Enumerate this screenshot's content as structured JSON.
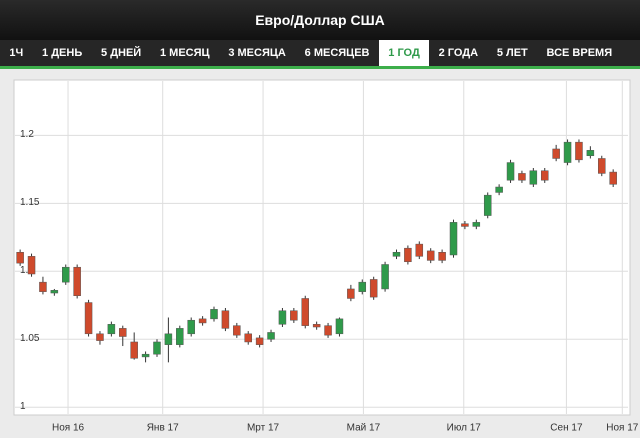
{
  "header": {
    "title": "Евро/Доллар США"
  },
  "tabs": [
    {
      "label": "1Ч"
    },
    {
      "label": "1 ДЕНЬ"
    },
    {
      "label": "5 ДНЕЙ"
    },
    {
      "label": "1 МЕСЯЦ"
    },
    {
      "label": "3 МЕСЯЦА"
    },
    {
      "label": "6 МЕСЯЦЕВ"
    },
    {
      "label": "1 ГОД",
      "active": true
    },
    {
      "label": "2 ГОДА"
    },
    {
      "label": "5 ЛЕТ"
    },
    {
      "label": "ВСЕ ВРЕМЯ"
    }
  ],
  "chart_data": {
    "type": "candlestick",
    "up_color": "#2f9a4a",
    "down_color": "#cf4a2c",
    "grid": true,
    "open": [
      1.114,
      1.111,
      1.092,
      1.084,
      1.092,
      1.103,
      1.077,
      1.054,
      1.054,
      1.058,
      1.048,
      1.037,
      1.039,
      1.046,
      1.046,
      1.054,
      1.065,
      1.065,
      1.071,
      1.06,
      1.054,
      1.051,
      1.05,
      1.061,
      1.071,
      1.08,
      1.061,
      1.06,
      1.054,
      1.087,
      1.085,
      1.094,
      1.087,
      1.111,
      1.117,
      1.12,
      1.115,
      1.114,
      1.112,
      1.135,
      1.133,
      1.141,
      1.158,
      1.167,
      1.172,
      1.164,
      1.174,
      1.19,
      1.18,
      1.195,
      1.185,
      1.183,
      1.173
    ],
    "high": [
      1.116,
      1.113,
      1.096,
      1.087,
      1.105,
      1.105,
      1.079,
      1.056,
      1.063,
      1.06,
      1.055,
      1.041,
      1.05,
      1.066,
      1.06,
      1.066,
      1.067,
      1.074,
      1.073,
      1.062,
      1.056,
      1.053,
      1.057,
      1.073,
      1.073,
      1.082,
      1.063,
      1.062,
      1.066,
      1.09,
      1.094,
      1.096,
      1.107,
      1.116,
      1.119,
      1.122,
      1.117,
      1.116,
      1.138,
      1.137,
      1.138,
      1.158,
      1.164,
      1.182,
      1.174,
      1.176,
      1.176,
      1.193,
      1.197,
      1.197,
      1.192,
      1.185,
      1.175
    ],
    "low": [
      1.104,
      1.096,
      1.083,
      1.082,
      1.09,
      1.08,
      1.052,
      1.046,
      1.052,
      1.045,
      1.035,
      1.033,
      1.037,
      1.033,
      1.044,
      1.052,
      1.06,
      1.063,
      1.056,
      1.051,
      1.046,
      1.044,
      1.048,
      1.059,
      1.062,
      1.058,
      1.057,
      1.051,
      1.052,
      1.078,
      1.083,
      1.079,
      1.085,
      1.109,
      1.105,
      1.109,
      1.106,
      1.106,
      1.11,
      1.131,
      1.131,
      1.139,
      1.156,
      1.165,
      1.165,
      1.162,
      1.165,
      1.181,
      1.178,
      1.18,
      1.183,
      1.17,
      1.162
    ],
    "close": [
      1.106,
      1.098,
      1.085,
      1.086,
      1.103,
      1.082,
      1.054,
      1.049,
      1.061,
      1.052,
      1.036,
      1.039,
      1.048,
      1.054,
      1.058,
      1.064,
      1.062,
      1.072,
      1.058,
      1.053,
      1.048,
      1.046,
      1.055,
      1.071,
      1.064,
      1.06,
      1.059,
      1.053,
      1.065,
      1.08,
      1.092,
      1.081,
      1.105,
      1.114,
      1.107,
      1.111,
      1.108,
      1.108,
      1.136,
      1.133,
      1.136,
      1.156,
      1.162,
      1.18,
      1.167,
      1.174,
      1.167,
      1.183,
      1.195,
      1.182,
      1.189,
      1.172,
      1.164
    ],
    "ylim": [
      0.995,
      1.24
    ],
    "yticks": [
      1.2,
      1.15,
      1.1,
      1.05,
      1
    ],
    "xlim": [
      -0.45,
      53.3
    ],
    "xticks": [
      {
        "value": 4.2,
        "label": "Ноя 16"
      },
      {
        "value": 12.5,
        "label": "Янв 17"
      },
      {
        "value": 21.3,
        "label": "Мрт 17"
      },
      {
        "value": 30.1,
        "label": "Май 17"
      },
      {
        "value": 38.9,
        "label": "Июл 17"
      },
      {
        "value": 47.9,
        "label": "Сен 17"
      },
      {
        "value": 52.8,
        "label": "Ноя 17"
      }
    ]
  }
}
